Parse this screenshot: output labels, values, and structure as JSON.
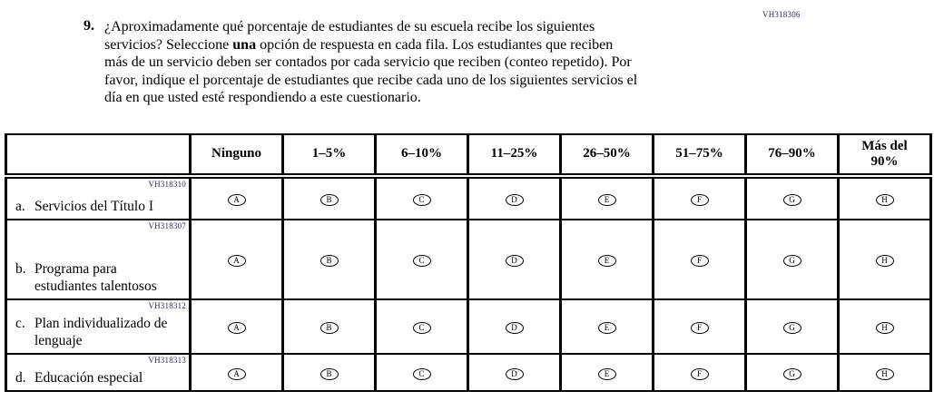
{
  "question": {
    "number": "9.",
    "code": "VH318306",
    "text_before": "¿Aproximadamente qué porcentaje de estudiantes de su escuela recibe los siguientes servicios? Seleccione ",
    "text_bold": "una",
    "text_after": " opción de respuesta en cada fila. Los estudiantes que reciben más de un servicio deben ser contados por cada servicio que reciben (conteo repetido). Por favor, indique el porcentaje de estudiantes que recibe cada uno de los siguientes servicios el día en que usted esté respondiendo a este cuestionario."
  },
  "table": {
    "column_headers": [
      "Ninguno",
      "1–5%",
      "6–10%",
      "11–25%",
      "26–50%",
      "51–75%",
      "76–90%",
      "Más del\n90%"
    ],
    "option_letters": [
      "A",
      "B",
      "C",
      "D",
      "E",
      "F",
      "G",
      "H"
    ],
    "rows": [
      {
        "code": "VH318310",
        "letter": "a.",
        "label": "Servicios del Título I"
      },
      {
        "code": "VH318307",
        "letter": "b.",
        "label": "Programa para estudiantes talentosos"
      },
      {
        "code": "VH318312",
        "letter": "c.",
        "label": "Plan individualizado de lenguaje"
      },
      {
        "code": "VH318313",
        "letter": "d.",
        "label": "Educación especial"
      }
    ]
  }
}
